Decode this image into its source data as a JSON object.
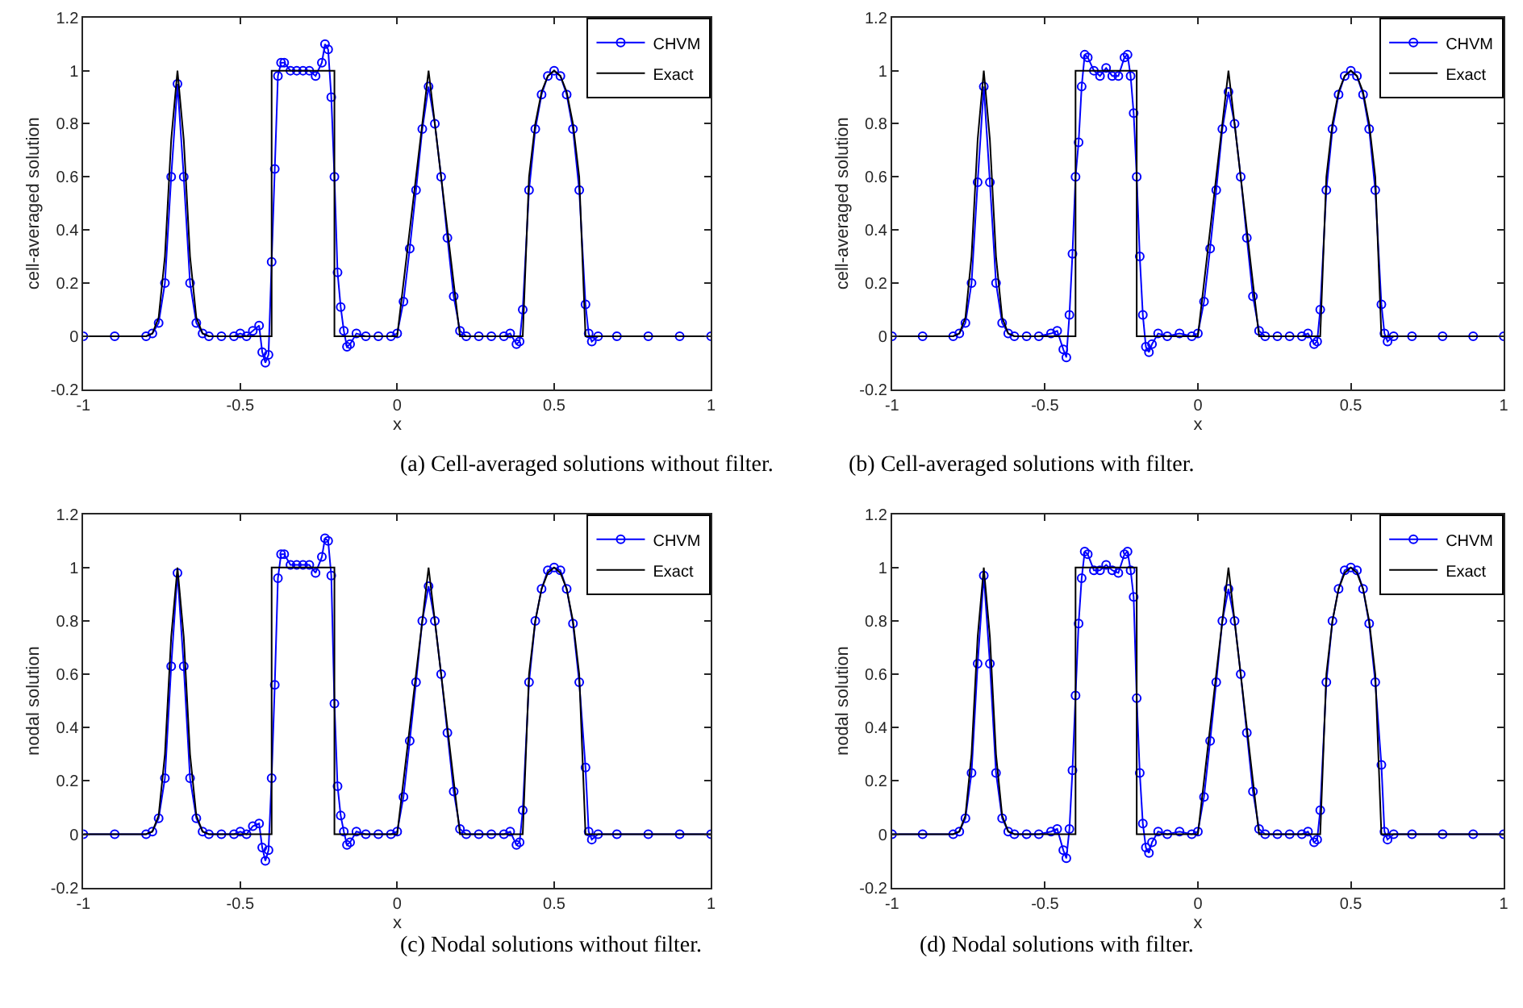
{
  "chart_data": [
    {
      "type": "line",
      "xlabel": "x",
      "ylabel": "cell-averaged solution",
      "xlim": [
        -1,
        1
      ],
      "xticks": [
        -1,
        -0.5,
        0,
        0.5,
        1
      ],
      "ylim": [
        -0.2,
        1.2
      ],
      "yticks": [
        -0.2,
        0,
        0.2,
        0.4,
        0.6,
        0.8,
        1,
        1.2
      ],
      "legend": "top right",
      "annotations": [
        "(a) Cell-averaged solutions without filter."
      ],
      "series": [
        {
          "name": "CHVM",
          "color": "#0000ff",
          "marker": "circle",
          "x": [
            -1,
            -0.9,
            -0.8,
            -0.78,
            -0.76,
            -0.74,
            -0.72,
            -0.7,
            -0.68,
            -0.66,
            -0.64,
            -0.62,
            -0.6,
            -0.56,
            -0.52,
            -0.5,
            -0.48,
            -0.46,
            -0.44,
            -0.43,
            -0.42,
            -0.41,
            -0.4,
            -0.39,
            -0.38,
            -0.37,
            -0.36,
            -0.34,
            -0.32,
            -0.3,
            -0.28,
            -0.26,
            -0.24,
            -0.23,
            -0.22,
            -0.21,
            -0.2,
            -0.19,
            -0.18,
            -0.17,
            -0.16,
            -0.15,
            -0.13,
            -0.1,
            -0.06,
            -0.02,
            0,
            0.02,
            0.04,
            0.06,
            0.08,
            0.1,
            0.12,
            0.14,
            0.16,
            0.18,
            0.2,
            0.22,
            0.26,
            0.3,
            0.34,
            0.36,
            0.38,
            0.39,
            0.4,
            0.42,
            0.44,
            0.46,
            0.48,
            0.5,
            0.52,
            0.54,
            0.56,
            0.58,
            0.6,
            0.61,
            0.62,
            0.64,
            0.7,
            0.8,
            0.9,
            1
          ],
          "values": [
            0,
            0,
            0,
            0.01,
            0.05,
            0.2,
            0.6,
            0.95,
            0.6,
            0.2,
            0.05,
            0.01,
            0,
            0,
            0,
            0.01,
            0,
            0.02,
            0.04,
            -0.06,
            -0.1,
            -0.07,
            0.28,
            0.63,
            0.98,
            1.03,
            1.03,
            1.0,
            1.0,
            1.0,
            1.0,
            0.98,
            1.03,
            1.1,
            1.08,
            0.9,
            0.6,
            0.24,
            0.11,
            0.02,
            -0.04,
            -0.03,
            0.01,
            0,
            0,
            0,
            0.01,
            0.13,
            0.33,
            0.55,
            0.78,
            0.94,
            0.8,
            0.6,
            0.37,
            0.15,
            0.02,
            0,
            0,
            0,
            0,
            0.01,
            -0.03,
            -0.02,
            0.1,
            0.55,
            0.78,
            0.91,
            0.98,
            1.0,
            0.98,
            0.91,
            0.78,
            0.55,
            0.12,
            0.01,
            -0.02,
            0,
            0,
            0,
            0,
            0
          ]
        },
        {
          "name": "Exact",
          "color": "#000000",
          "marker": "none",
          "x": [
            -1,
            -0.8,
            -0.78,
            -0.76,
            -0.74,
            -0.72,
            -0.7,
            -0.68,
            -0.66,
            -0.64,
            -0.62,
            -0.6,
            -0.4,
            -0.4,
            -0.2,
            -0.2,
            0,
            0.1,
            0.2,
            0.4,
            0.42,
            0.44,
            0.46,
            0.48,
            0.5,
            0.52,
            0.54,
            0.56,
            0.58,
            0.6,
            1
          ],
          "values": [
            0,
            0,
            0.01,
            0.07,
            0.3,
            0.74,
            1,
            0.74,
            0.3,
            0.07,
            0.01,
            0,
            0,
            1,
            1,
            0,
            0,
            1,
            0,
            0,
            0.6,
            0.8,
            0.92,
            0.98,
            1,
            0.98,
            0.92,
            0.8,
            0.6,
            0,
            0
          ]
        }
      ]
    },
    {
      "type": "line",
      "xlabel": "x",
      "ylabel": "cell-averaged solution",
      "xlim": [
        -1,
        1
      ],
      "xticks": [
        -1,
        -0.5,
        0,
        0.5,
        1
      ],
      "ylim": [
        -0.2,
        1.2
      ],
      "yticks": [
        -0.2,
        0,
        0.2,
        0.4,
        0.6,
        0.8,
        1,
        1.2
      ],
      "legend": "top right",
      "annotations": [
        "(b) Cell-averaged solutions with filter."
      ],
      "series": [
        {
          "name": "CHVM",
          "color": "#0000ff",
          "marker": "circle",
          "x": [
            -1,
            -0.9,
            -0.8,
            -0.78,
            -0.76,
            -0.74,
            -0.72,
            -0.7,
            -0.68,
            -0.66,
            -0.64,
            -0.62,
            -0.6,
            -0.56,
            -0.52,
            -0.48,
            -0.46,
            -0.44,
            -0.43,
            -0.42,
            -0.41,
            -0.4,
            -0.39,
            -0.38,
            -0.37,
            -0.36,
            -0.34,
            -0.32,
            -0.3,
            -0.28,
            -0.26,
            -0.24,
            -0.23,
            -0.22,
            -0.21,
            -0.2,
            -0.19,
            -0.18,
            -0.17,
            -0.16,
            -0.15,
            -0.13,
            -0.1,
            -0.06,
            -0.02,
            0,
            0.02,
            0.04,
            0.06,
            0.08,
            0.1,
            0.12,
            0.14,
            0.16,
            0.18,
            0.2,
            0.22,
            0.26,
            0.3,
            0.34,
            0.36,
            0.38,
            0.39,
            0.4,
            0.42,
            0.44,
            0.46,
            0.48,
            0.5,
            0.52,
            0.54,
            0.56,
            0.58,
            0.6,
            0.61,
            0.62,
            0.64,
            0.7,
            0.8,
            0.9,
            1
          ],
          "values": [
            0,
            0,
            0,
            0.01,
            0.05,
            0.2,
            0.58,
            0.94,
            0.58,
            0.2,
            0.05,
            0.01,
            0,
            0,
            0,
            0.01,
            0.02,
            -0.05,
            -0.08,
            0.08,
            0.31,
            0.6,
            0.73,
            0.94,
            1.06,
            1.05,
            1.0,
            0.98,
            1.01,
            0.98,
            0.98,
            1.05,
            1.06,
            0.98,
            0.84,
            0.6,
            0.3,
            0.08,
            -0.04,
            -0.06,
            -0.03,
            0.01,
            0,
            0.01,
            0,
            0.01,
            0.13,
            0.33,
            0.55,
            0.78,
            0.92,
            0.8,
            0.6,
            0.37,
            0.15,
            0.02,
            0,
            0,
            0,
            0,
            0.01,
            -0.03,
            -0.02,
            0.1,
            0.55,
            0.78,
            0.91,
            0.98,
            1.0,
            0.98,
            0.91,
            0.78,
            0.55,
            0.12,
            0.01,
            -0.02,
            0,
            0,
            0,
            0,
            0
          ]
        },
        {
          "name": "Exact",
          "color": "#000000",
          "marker": "none",
          "x": [
            -1,
            -0.8,
            -0.78,
            -0.76,
            -0.74,
            -0.72,
            -0.7,
            -0.68,
            -0.66,
            -0.64,
            -0.62,
            -0.6,
            -0.4,
            -0.4,
            -0.2,
            -0.2,
            0,
            0.1,
            0.2,
            0.4,
            0.42,
            0.44,
            0.46,
            0.48,
            0.5,
            0.52,
            0.54,
            0.56,
            0.58,
            0.6,
            1
          ],
          "values": [
            0,
            0,
            0.01,
            0.07,
            0.3,
            0.74,
            1,
            0.74,
            0.3,
            0.07,
            0.01,
            0,
            0,
            1,
            1,
            0,
            0,
            1,
            0,
            0,
            0.6,
            0.8,
            0.92,
            0.98,
            1,
            0.98,
            0.92,
            0.8,
            0.6,
            0,
            0
          ]
        }
      ]
    },
    {
      "type": "line",
      "xlabel": "x",
      "ylabel": "nodal solution",
      "xlim": [
        -1,
        1
      ],
      "xticks": [
        -1,
        -0.5,
        0,
        0.5,
        1
      ],
      "ylim": [
        -0.2,
        1.2
      ],
      "yticks": [
        -0.2,
        0,
        0.2,
        0.4,
        0.6,
        0.8,
        1,
        1.2
      ],
      "legend": "top right",
      "annotations": [
        "(c) Nodal solutions without filter."
      ],
      "series": [
        {
          "name": "CHVM",
          "color": "#0000ff",
          "marker": "circle",
          "x": [
            -1,
            -0.9,
            -0.8,
            -0.78,
            -0.76,
            -0.74,
            -0.72,
            -0.7,
            -0.68,
            -0.66,
            -0.64,
            -0.62,
            -0.6,
            -0.56,
            -0.52,
            -0.5,
            -0.48,
            -0.46,
            -0.44,
            -0.43,
            -0.42,
            -0.41,
            -0.4,
            -0.39,
            -0.38,
            -0.37,
            -0.36,
            -0.34,
            -0.32,
            -0.3,
            -0.28,
            -0.26,
            -0.24,
            -0.23,
            -0.22,
            -0.21,
            -0.2,
            -0.19,
            -0.18,
            -0.17,
            -0.16,
            -0.15,
            -0.13,
            -0.1,
            -0.06,
            -0.02,
            0,
            0.02,
            0.04,
            0.06,
            0.08,
            0.1,
            0.12,
            0.14,
            0.16,
            0.18,
            0.2,
            0.22,
            0.26,
            0.3,
            0.34,
            0.36,
            0.38,
            0.39,
            0.4,
            0.42,
            0.44,
            0.46,
            0.48,
            0.5,
            0.52,
            0.54,
            0.56,
            0.58,
            0.6,
            0.61,
            0.62,
            0.64,
            0.7,
            0.8,
            0.9,
            1
          ],
          "values": [
            0,
            0,
            0,
            0.01,
            0.06,
            0.21,
            0.63,
            0.98,
            0.63,
            0.21,
            0.06,
            0.01,
            0,
            0,
            0,
            0.01,
            0,
            0.03,
            0.04,
            -0.05,
            -0.1,
            -0.06,
            0.21,
            0.56,
            0.96,
            1.05,
            1.05,
            1.01,
            1.01,
            1.01,
            1.01,
            0.98,
            1.04,
            1.11,
            1.1,
            0.97,
            0.49,
            0.18,
            0.07,
            0.01,
            -0.04,
            -0.03,
            0.01,
            0,
            0,
            0,
            0.01,
            0.14,
            0.35,
            0.57,
            0.8,
            0.93,
            0.8,
            0.6,
            0.38,
            0.16,
            0.02,
            0,
            0,
            0,
            0,
            0.01,
            -0.04,
            -0.03,
            0.09,
            0.57,
            0.8,
            0.92,
            0.99,
            1.0,
            0.99,
            0.92,
            0.79,
            0.57,
            0.25,
            0.01,
            -0.02,
            0,
            0,
            0,
            0,
            0
          ]
        },
        {
          "name": "Exact",
          "color": "#000000",
          "marker": "none",
          "x": [
            -1,
            -0.8,
            -0.78,
            -0.76,
            -0.74,
            -0.72,
            -0.7,
            -0.68,
            -0.66,
            -0.64,
            -0.62,
            -0.6,
            -0.4,
            -0.4,
            -0.2,
            -0.2,
            0,
            0.1,
            0.2,
            0.4,
            0.42,
            0.44,
            0.46,
            0.48,
            0.5,
            0.52,
            0.54,
            0.56,
            0.58,
            0.6,
            1
          ],
          "values": [
            0,
            0,
            0.01,
            0.07,
            0.3,
            0.74,
            1,
            0.74,
            0.3,
            0.07,
            0.01,
            0,
            0,
            1,
            1,
            0,
            0,
            1,
            0,
            0,
            0.6,
            0.8,
            0.92,
            0.98,
            1,
            0.98,
            0.92,
            0.8,
            0.6,
            0,
            0
          ]
        }
      ]
    },
    {
      "type": "line",
      "xlabel": "x",
      "ylabel": "nodal solution",
      "xlim": [
        -1,
        1
      ],
      "xticks": [
        -1,
        -0.5,
        0,
        0.5,
        1
      ],
      "ylim": [
        -0.2,
        1.2
      ],
      "yticks": [
        -0.2,
        0,
        0.2,
        0.4,
        0.6,
        0.8,
        1,
        1.2
      ],
      "legend": "top right",
      "annotations": [
        "(d) Nodal solutions with filter."
      ],
      "series": [
        {
          "name": "CHVM",
          "color": "#0000ff",
          "marker": "circle",
          "x": [
            -1,
            -0.9,
            -0.8,
            -0.78,
            -0.76,
            -0.74,
            -0.72,
            -0.7,
            -0.68,
            -0.66,
            -0.64,
            -0.62,
            -0.6,
            -0.56,
            -0.52,
            -0.48,
            -0.46,
            -0.44,
            -0.43,
            -0.42,
            -0.41,
            -0.4,
            -0.39,
            -0.38,
            -0.37,
            -0.36,
            -0.34,
            -0.32,
            -0.3,
            -0.28,
            -0.26,
            -0.24,
            -0.23,
            -0.22,
            -0.21,
            -0.2,
            -0.19,
            -0.18,
            -0.17,
            -0.16,
            -0.15,
            -0.13,
            -0.1,
            -0.06,
            -0.02,
            0,
            0.02,
            0.04,
            0.06,
            0.08,
            0.1,
            0.12,
            0.14,
            0.16,
            0.18,
            0.2,
            0.22,
            0.26,
            0.3,
            0.34,
            0.36,
            0.38,
            0.39,
            0.4,
            0.42,
            0.44,
            0.46,
            0.48,
            0.5,
            0.52,
            0.54,
            0.56,
            0.58,
            0.6,
            0.61,
            0.62,
            0.64,
            0.7,
            0.8,
            0.9,
            1
          ],
          "values": [
            0,
            0,
            0,
            0.01,
            0.06,
            0.23,
            0.64,
            0.97,
            0.64,
            0.23,
            0.06,
            0.01,
            0,
            0,
            0,
            0.01,
            0.02,
            -0.06,
            -0.09,
            0.02,
            0.24,
            0.52,
            0.79,
            0.96,
            1.06,
            1.05,
            0.99,
            0.99,
            1.01,
            0.99,
            0.98,
            1.05,
            1.06,
            0.99,
            0.89,
            0.51,
            0.23,
            0.04,
            -0.05,
            -0.07,
            -0.03,
            0.01,
            0,
            0.01,
            0,
            0.01,
            0.14,
            0.35,
            0.57,
            0.8,
            0.92,
            0.8,
            0.6,
            0.38,
            0.16,
            0.02,
            0,
            0,
            0,
            0,
            0.01,
            -0.03,
            -0.02,
            0.09,
            0.57,
            0.8,
            0.92,
            0.99,
            1.0,
            0.99,
            0.92,
            0.79,
            0.57,
            0.26,
            0.01,
            -0.02,
            0,
            0,
            0,
            0,
            0
          ]
        },
        {
          "name": "Exact",
          "color": "#000000",
          "marker": "none",
          "x": [
            -1,
            -0.8,
            -0.78,
            -0.76,
            -0.74,
            -0.72,
            -0.7,
            -0.68,
            -0.66,
            -0.64,
            -0.62,
            -0.6,
            -0.4,
            -0.4,
            -0.2,
            -0.2,
            0,
            0.1,
            0.2,
            0.4,
            0.42,
            0.44,
            0.46,
            0.48,
            0.5,
            0.52,
            0.54,
            0.56,
            0.58,
            0.6,
            1
          ],
          "values": [
            0,
            0,
            0.01,
            0.07,
            0.3,
            0.74,
            1,
            0.74,
            0.3,
            0.07,
            0.01,
            0,
            0,
            1,
            1,
            0,
            0,
            1,
            0,
            0,
            0.6,
            0.8,
            0.92,
            0.98,
            1,
            0.98,
            0.92,
            0.8,
            0.6,
            0,
            0
          ]
        }
      ]
    }
  ]
}
